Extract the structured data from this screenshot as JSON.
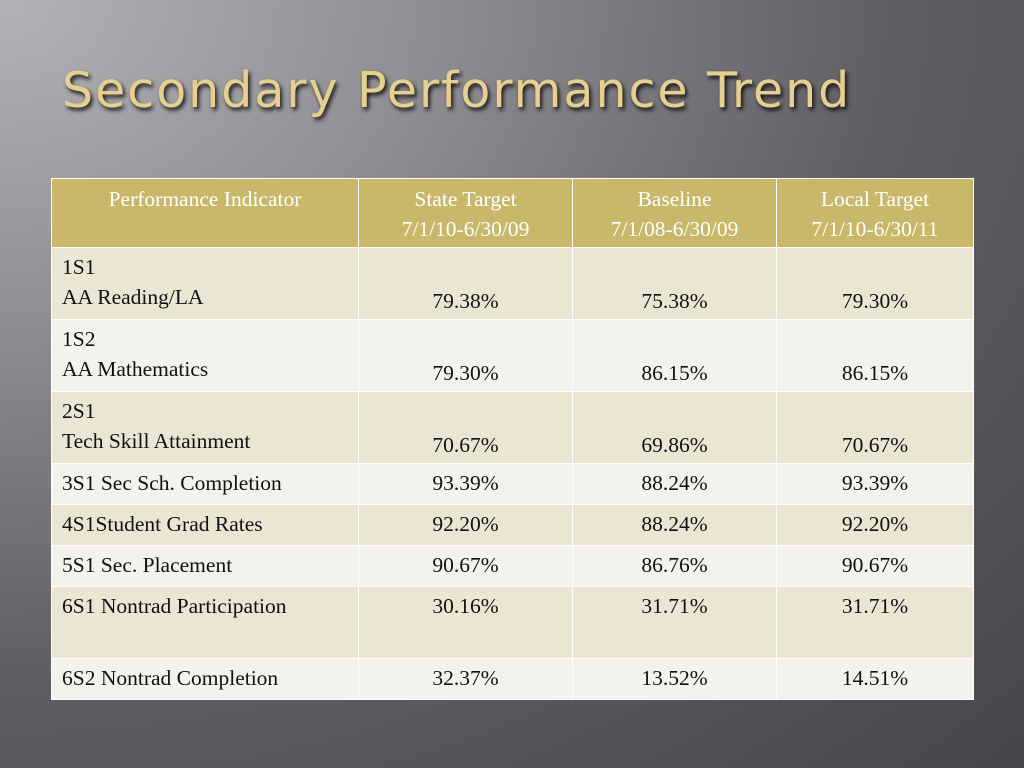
{
  "slide": {
    "title": "Secondary Performance Trend"
  },
  "table": {
    "headers": [
      {
        "line1": "Performance Indicator",
        "line2": ""
      },
      {
        "line1": "State Target",
        "line2": "7/1/10-6/30/09"
      },
      {
        "line1": "Baseline",
        "line2": "7/1/08-6/30/09"
      },
      {
        "line1": "Local Target",
        "line2": "7/1/10-6/30/11"
      }
    ],
    "rows": [
      {
        "code": "1S1",
        "label": "AA Reading/LA",
        "state_target": "79.38%",
        "baseline": "75.38%",
        "local_target": "79.30%"
      },
      {
        "code": "1S2",
        "label": "AA Mathematics",
        "state_target": "79.30%",
        "baseline": "86.15%",
        "local_target": "86.15%"
      },
      {
        "code": "2S1",
        "label": "Tech Skill Attainment",
        "state_target": "70.67%",
        "baseline": "69.86%",
        "local_target": "70.67%"
      },
      {
        "code": "",
        "label": "3S1 Sec Sch. Completion",
        "state_target": "93.39%",
        "baseline": "88.24%",
        "local_target": "93.39%"
      },
      {
        "code": "",
        "label": "4S1Student Grad Rates",
        "state_target": "92.20%",
        "baseline": "88.24%",
        "local_target": "92.20%"
      },
      {
        "code": "",
        "label": "5S1 Sec. Placement",
        "state_target": "90.67%",
        "baseline": "86.76%",
        "local_target": "90.67%"
      },
      {
        "code": "",
        "label": "6S1 Nontrad Participation",
        "state_target": "30.16%",
        "baseline": "31.71%",
        "local_target": "31.71%"
      },
      {
        "code": "",
        "label": "6S2 Nontrad Completion",
        "state_target": "32.37%",
        "baseline": "13.52%",
        "local_target": "14.51%"
      }
    ]
  },
  "colors": {
    "title": "#e6d08f",
    "header_bg": "#c9b76a",
    "row_odd": "#ebe5d3",
    "row_even": "#f4f2ec"
  }
}
